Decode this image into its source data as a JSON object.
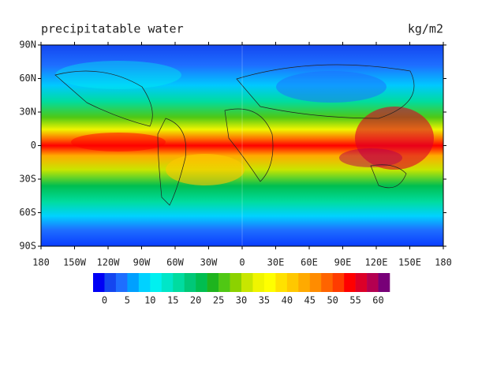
{
  "title": "precipitatable water",
  "units": "kg/m2",
  "map": {
    "lat_labels": [
      "90N",
      "60N",
      "30N",
      "0",
      "30S",
      "60S",
      "90S"
    ],
    "lon_labels": [
      "180",
      "150W",
      "120W",
      "90W",
      "60W",
      "30W",
      "0",
      "30E",
      "60E",
      "90E",
      "120E",
      "150E",
      "180"
    ]
  },
  "colorbar": {
    "colors": [
      "#0000f5",
      "#1446f0",
      "#1e6eff",
      "#00a0ff",
      "#00d2ff",
      "#00f0f0",
      "#00e6c8",
      "#00dca0",
      "#00c878",
      "#00be50",
      "#1eb41e",
      "#50c814",
      "#8cd200",
      "#c8e600",
      "#f0f500",
      "#ffff00",
      "#ffe100",
      "#ffc800",
      "#ffaa00",
      "#ff8c00",
      "#ff6400",
      "#ff3c00",
      "#ff0000",
      "#dc0028",
      "#b40050",
      "#780078"
    ],
    "ticks": [
      0,
      5,
      10,
      15,
      20,
      25,
      30,
      35,
      40,
      45,
      50,
      55,
      60
    ]
  }
}
